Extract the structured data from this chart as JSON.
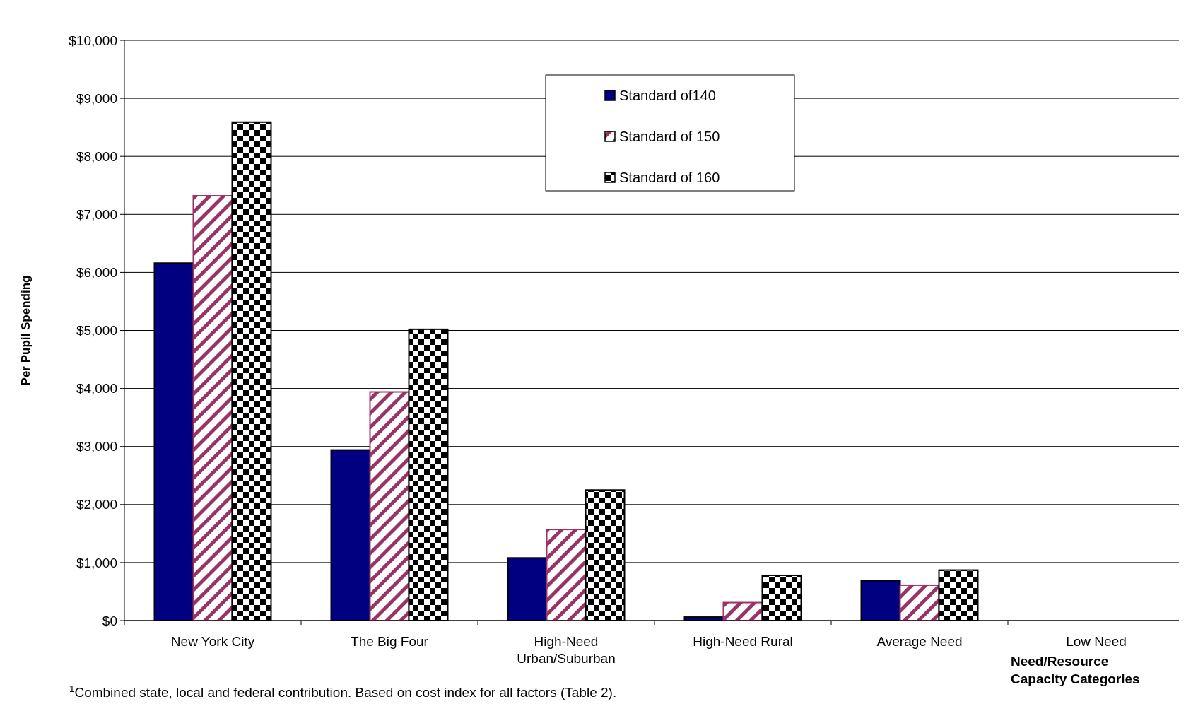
{
  "chart_data": {
    "type": "bar",
    "ylabel": "Per Pupil Spending",
    "xlabel": "Need/Resource Capacity Categories",
    "categories": [
      "New York City",
      "The Big Four",
      "High-Need Urban/Suburban",
      "High-Need Rural",
      "Average Need",
      "Low Need"
    ],
    "series": [
      {
        "name": "Standard of140",
        "color": "#000080",
        "values": [
          6160,
          2940,
          1080,
          60,
          690,
          0
        ]
      },
      {
        "name": "Standard of 150",
        "color": "#993366",
        "values": [
          7320,
          3940,
          1570,
          310,
          610,
          0
        ]
      },
      {
        "name": "Standard of 160",
        "color": "#000000",
        "values": [
          8590,
          5020,
          2250,
          780,
          870,
          0
        ]
      }
    ],
    "ylim": [
      0,
      10000
    ],
    "yticks": [
      {
        "value": 0,
        "label": "$0"
      },
      {
        "value": 1000,
        "label": "$1,000"
      },
      {
        "value": 2000,
        "label": "$2,000"
      },
      {
        "value": 3000,
        "label": "$3,000"
      },
      {
        "value": 4000,
        "label": "$4,000"
      },
      {
        "value": 5000,
        "label": "$5,000"
      },
      {
        "value": 6000,
        "label": "$6,000"
      },
      {
        "value": 7000,
        "label": "$7,000"
      },
      {
        "value": 8000,
        "label": "$8,000"
      },
      {
        "value": 9000,
        "label": "$9,000"
      },
      {
        "value": 10000,
        "label": "$10,000"
      }
    ],
    "grid": "y",
    "legend": "top",
    "annotations": [
      "$^{1}$Combined state, local and federal contribution. Based on cost index for all factors (Table 2)."
    ]
  }
}
